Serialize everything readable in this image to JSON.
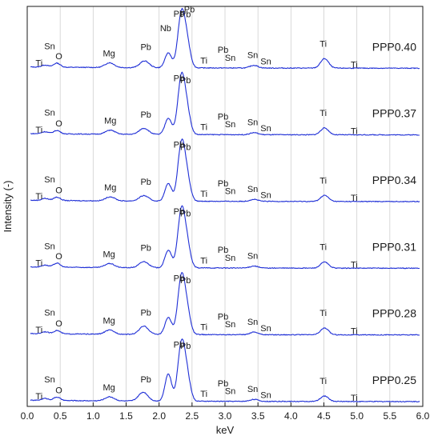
{
  "chart_data": {
    "type": "line",
    "xlabel": "keV",
    "ylabel": "Intensity (-)",
    "xlim": [
      0.0,
      6.0
    ],
    "x_ticks": [
      "0.0",
      "0.5",
      "1.0",
      "1.5",
      "2.0",
      "2.5",
      "3.0",
      "3.5",
      "4.0",
      "4.5",
      "5.0",
      "5.5",
      "6.0"
    ],
    "grid": "vertical",
    "line_color": "#1f2fd6",
    "series": [
      {
        "name": "PPP0.40",
        "peaks": [
          {
            "x": 0.27,
            "h": 0.03,
            "w": 0.05
          },
          {
            "x": 0.45,
            "h": 0.06,
            "w": 0.05
          },
          {
            "x": 1.25,
            "h": 0.07,
            "w": 0.07
          },
          {
            "x": 1.78,
            "h": 0.1,
            "w": 0.07
          },
          {
            "x": 2.14,
            "h": 0.22,
            "w": 0.05
          },
          {
            "x": 2.34,
            "h": 0.8,
            "w": 0.055
          },
          {
            "x": 2.43,
            "h": 0.3,
            "w": 0.05
          },
          {
            "x": 3.44,
            "h": 0.04,
            "w": 0.06
          },
          {
            "x": 4.51,
            "h": 0.14,
            "w": 0.06
          }
        ],
        "labels": [
          {
            "text": "Ti",
            "x": 0.18,
            "dy": -1.2
          },
          {
            "text": "Sn",
            "x": 0.34,
            "dy": 2.2
          },
          {
            "text": "O",
            "x": 0.48,
            "dy": -0.4
          },
          {
            "text": "Mg",
            "x": 1.24,
            "dy": 0.0
          },
          {
            "text": "Pb",
            "x": 1.8,
            "dy": 1.0
          },
          {
            "text": "Nb",
            "x": 2.1,
            "dy": 4.0
          },
          {
            "text": "Pb",
            "x": 2.34,
            "dy": 6.6
          },
          {
            "text": "Pb",
            "x": 2.46,
            "dy": 5.6
          },
          {
            "text": "Pb",
            "x": 2.3,
            "dy": 0.4
          },
          {
            "text": "Pb",
            "x": 2.4,
            "dy": -0.6
          },
          {
            "text": "Ti",
            "x": 2.68,
            "dy": -0.4
          },
          {
            "text": "Pb",
            "x": 2.97,
            "dy": 1.8
          },
          {
            "text": "Sn",
            "x": 3.08,
            "dy": 0.2
          },
          {
            "text": "Sn",
            "x": 3.42,
            "dy": 0.2
          },
          {
            "text": "Sn",
            "x": 3.62,
            "dy": -0.6
          },
          {
            "text": "Ti",
            "x": 4.49,
            "dy": 1.2
          },
          {
            "text": "Ti",
            "x": 4.96,
            "dy": -1.2
          }
        ]
      },
      {
        "name": "PPP0.37",
        "peaks": [
          {
            "x": 0.27,
            "h": 0.03,
            "w": 0.05
          },
          {
            "x": 0.45,
            "h": 0.05,
            "w": 0.05
          },
          {
            "x": 1.26,
            "h": 0.06,
            "w": 0.07
          },
          {
            "x": 1.77,
            "h": 0.09,
            "w": 0.07
          },
          {
            "x": 2.14,
            "h": 0.24,
            "w": 0.05
          },
          {
            "x": 2.34,
            "h": 0.85,
            "w": 0.055
          },
          {
            "x": 2.43,
            "h": 0.28,
            "w": 0.05
          },
          {
            "x": 3.44,
            "h": 0.03,
            "w": 0.06
          },
          {
            "x": 4.51,
            "h": 0.1,
            "w": 0.06
          }
        ],
        "labels": [
          {
            "text": "Ti",
            "x": 0.18,
            "dy": -1.2
          },
          {
            "text": "Sn",
            "x": 0.34,
            "dy": 2.2
          },
          {
            "text": "O",
            "x": 0.48,
            "dy": -0.4
          },
          {
            "text": "Mg",
            "x": 1.26,
            "dy": 0.0
          },
          {
            "text": "Pb",
            "x": 1.8,
            "dy": 1.0
          },
          {
            "text": "Pb",
            "x": 2.3,
            "dy": 0.4
          },
          {
            "text": "Pb",
            "x": 2.4,
            "dy": -0.6
          },
          {
            "text": "Ti",
            "x": 2.68,
            "dy": -0.4
          },
          {
            "text": "Pb",
            "x": 2.97,
            "dy": 1.8
          },
          {
            "text": "Sn",
            "x": 3.08,
            "dy": 0.2
          },
          {
            "text": "Sn",
            "x": 3.42,
            "dy": 0.2
          },
          {
            "text": "Sn",
            "x": 3.62,
            "dy": -0.6
          },
          {
            "text": "Ti",
            "x": 4.49,
            "dy": 1.2
          },
          {
            "text": "Ti",
            "x": 4.96,
            "dy": -1.2
          }
        ]
      },
      {
        "name": "PPP0.34",
        "peaks": [
          {
            "x": 0.27,
            "h": 0.03,
            "w": 0.05
          },
          {
            "x": 0.45,
            "h": 0.05,
            "w": 0.05
          },
          {
            "x": 1.26,
            "h": 0.06,
            "w": 0.07
          },
          {
            "x": 1.77,
            "h": 0.08,
            "w": 0.07
          },
          {
            "x": 2.14,
            "h": 0.26,
            "w": 0.05
          },
          {
            "x": 2.34,
            "h": 0.85,
            "w": 0.055
          },
          {
            "x": 2.43,
            "h": 0.28,
            "w": 0.05
          },
          {
            "x": 3.44,
            "h": 0.03,
            "w": 0.06
          },
          {
            "x": 4.51,
            "h": 0.09,
            "w": 0.06
          }
        ],
        "labels": [
          {
            "text": "Ti",
            "x": 0.18,
            "dy": -1.2
          },
          {
            "text": "Sn",
            "x": 0.34,
            "dy": 2.2
          },
          {
            "text": "O",
            "x": 0.48,
            "dy": -0.4
          },
          {
            "text": "Mg",
            "x": 1.26,
            "dy": 0.0
          },
          {
            "text": "Pb",
            "x": 1.8,
            "dy": 1.0
          },
          {
            "text": "Pb",
            "x": 2.3,
            "dy": 0.4
          },
          {
            "text": "Pb",
            "x": 2.4,
            "dy": -0.6
          },
          {
            "text": "Ti",
            "x": 2.68,
            "dy": -0.4
          },
          {
            "text": "Pb",
            "x": 2.97,
            "dy": 1.8
          },
          {
            "text": "Sn",
            "x": 3.08,
            "dy": 0.2
          },
          {
            "text": "Sn",
            "x": 3.42,
            "dy": 0.2
          },
          {
            "text": "Sn",
            "x": 3.62,
            "dy": -0.6
          },
          {
            "text": "Ti",
            "x": 4.49,
            "dy": 1.2
          },
          {
            "text": "Ti",
            "x": 4.96,
            "dy": -1.2
          }
        ]
      },
      {
        "name": "PPP0.31",
        "peaks": [
          {
            "x": 0.27,
            "h": 0.03,
            "w": 0.05
          },
          {
            "x": 0.45,
            "h": 0.06,
            "w": 0.05
          },
          {
            "x": 1.25,
            "h": 0.06,
            "w": 0.07
          },
          {
            "x": 1.77,
            "h": 0.09,
            "w": 0.07
          },
          {
            "x": 2.14,
            "h": 0.26,
            "w": 0.05
          },
          {
            "x": 2.34,
            "h": 0.85,
            "w": 0.055
          },
          {
            "x": 2.43,
            "h": 0.28,
            "w": 0.05
          },
          {
            "x": 3.44,
            "h": 0.03,
            "w": 0.06
          },
          {
            "x": 4.51,
            "h": 0.09,
            "w": 0.06
          }
        ],
        "labels": [
          {
            "text": "Ti",
            "x": 0.18,
            "dy": -1.2
          },
          {
            "text": "Sn",
            "x": 0.34,
            "dy": 2.2
          },
          {
            "text": "O",
            "x": 0.48,
            "dy": -0.4
          },
          {
            "text": "Mg",
            "x": 1.24,
            "dy": 0.0
          },
          {
            "text": "Pb",
            "x": 1.8,
            "dy": 1.0
          },
          {
            "text": "Pb",
            "x": 2.3,
            "dy": 0.4
          },
          {
            "text": "Pb",
            "x": 2.4,
            "dy": -0.6
          },
          {
            "text": "Ti",
            "x": 2.68,
            "dy": -0.4
          },
          {
            "text": "Pb",
            "x": 2.97,
            "dy": 1.8
          },
          {
            "text": "Sn",
            "x": 3.08,
            "dy": 0.2
          },
          {
            "text": "Sn",
            "x": 3.42,
            "dy": 0.2
          },
          {
            "text": "Ti",
            "x": 4.49,
            "dy": 1.2
          },
          {
            "text": "Ti",
            "x": 4.96,
            "dy": -1.2
          }
        ]
      },
      {
        "name": "PPP0.28",
        "peaks": [
          {
            "x": 0.27,
            "h": 0.03,
            "w": 0.05
          },
          {
            "x": 0.45,
            "h": 0.05,
            "w": 0.05
          },
          {
            "x": 1.25,
            "h": 0.06,
            "w": 0.07
          },
          {
            "x": 1.77,
            "h": 0.12,
            "w": 0.07
          },
          {
            "x": 2.14,
            "h": 0.25,
            "w": 0.05
          },
          {
            "x": 2.34,
            "h": 0.85,
            "w": 0.055
          },
          {
            "x": 2.43,
            "h": 0.28,
            "w": 0.05
          },
          {
            "x": 3.44,
            "h": 0.04,
            "w": 0.06
          },
          {
            "x": 4.51,
            "h": 0.1,
            "w": 0.06
          }
        ],
        "labels": [
          {
            "text": "Ti",
            "x": 0.18,
            "dy": -1.2
          },
          {
            "text": "Sn",
            "x": 0.34,
            "dy": 2.2
          },
          {
            "text": "O",
            "x": 0.48,
            "dy": -0.4
          },
          {
            "text": "Mg",
            "x": 1.24,
            "dy": 0.0
          },
          {
            "text": "Pb",
            "x": 1.8,
            "dy": 1.0
          },
          {
            "text": "Pb",
            "x": 2.3,
            "dy": 0.4
          },
          {
            "text": "Pb",
            "x": 2.4,
            "dy": -0.6
          },
          {
            "text": "Ti",
            "x": 2.68,
            "dy": -0.4
          },
          {
            "text": "Pb",
            "x": 2.97,
            "dy": 1.8
          },
          {
            "text": "Sn",
            "x": 3.08,
            "dy": 0.2
          },
          {
            "text": "Sn",
            "x": 3.42,
            "dy": 0.2
          },
          {
            "text": "Sn",
            "x": 3.62,
            "dy": -0.6
          },
          {
            "text": "Ti",
            "x": 4.49,
            "dy": 1.2
          },
          {
            "text": "Ti",
            "x": 4.96,
            "dy": -1.2
          }
        ]
      },
      {
        "name": "PPP0.25",
        "peaks": [
          {
            "x": 0.27,
            "h": 0.03,
            "w": 0.05
          },
          {
            "x": 0.45,
            "h": 0.05,
            "w": 0.05
          },
          {
            "x": 1.25,
            "h": 0.06,
            "w": 0.07
          },
          {
            "x": 1.76,
            "h": 0.13,
            "w": 0.07
          },
          {
            "x": 2.14,
            "h": 0.4,
            "w": 0.05
          },
          {
            "x": 2.34,
            "h": 0.85,
            "w": 0.055
          },
          {
            "x": 2.43,
            "h": 0.3,
            "w": 0.05
          },
          {
            "x": 3.44,
            "h": 0.03,
            "w": 0.06
          },
          {
            "x": 4.51,
            "h": 0.08,
            "w": 0.06
          }
        ],
        "labels": [
          {
            "text": "Ti",
            "x": 0.18,
            "dy": -1.2
          },
          {
            "text": "Sn",
            "x": 0.34,
            "dy": 2.2
          },
          {
            "text": "O",
            "x": 0.48,
            "dy": -0.4
          },
          {
            "text": "Mg",
            "x": 1.24,
            "dy": 0.0
          },
          {
            "text": "Pb",
            "x": 1.8,
            "dy": 1.0
          },
          {
            "text": "Pb",
            "x": 2.3,
            "dy": 0.4
          },
          {
            "text": "Pb",
            "x": 2.4,
            "dy": -0.6
          },
          {
            "text": "Ti",
            "x": 2.68,
            "dy": -0.4
          },
          {
            "text": "Pb",
            "x": 2.97,
            "dy": 1.8
          },
          {
            "text": "Sn",
            "x": 3.08,
            "dy": 0.2
          },
          {
            "text": "Sn",
            "x": 3.42,
            "dy": 0.2
          },
          {
            "text": "Sn",
            "x": 3.62,
            "dy": -0.6
          },
          {
            "text": "Ti",
            "x": 4.49,
            "dy": 1.2
          },
          {
            "text": "Ti",
            "x": 4.96,
            "dy": -1.2
          }
        ]
      }
    ]
  }
}
